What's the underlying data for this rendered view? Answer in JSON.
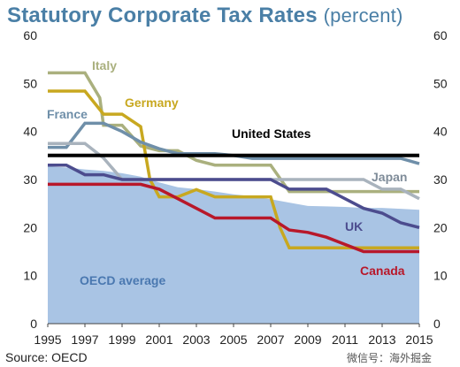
{
  "title_main": "Statutory Corporate Tax Rates",
  "title_unit": "(percent)",
  "source": "Source: OECD",
  "watermark": "微信号：海外掘金",
  "chart_data": {
    "type": "line",
    "title": "Statutory Corporate Tax Rates (percent)",
    "xlim": [
      1995,
      2015
    ],
    "ylim": [
      0,
      60
    ],
    "yticks": [
      0,
      10,
      20,
      30,
      40,
      50,
      60
    ],
    "xticks": [
      1995,
      1997,
      1999,
      2001,
      2003,
      2005,
      2007,
      2009,
      2011,
      2013,
      2015
    ],
    "grid": false,
    "series": [
      {
        "name": "OECD average",
        "style": "area",
        "color": "#a9c4e4",
        "x": [
          1995,
          1996,
          1997,
          1998,
          1999,
          2000,
          2001,
          2002,
          2003,
          2004,
          2005,
          2006,
          2007,
          2008,
          2009,
          2010,
          2011,
          2012,
          2013,
          2014,
          2015
        ],
        "y": [
          32.7,
          32.5,
          32.1,
          31.8,
          31.3,
          30.6,
          29.4,
          28.4,
          28.0,
          27.5,
          26.9,
          26.5,
          25.9,
          25.2,
          24.5,
          24.4,
          24.3,
          24.1,
          24.1,
          23.9,
          23.7
        ]
      },
      {
        "name": "Italy",
        "style": "line",
        "color": "#aab07e",
        "x": [
          1995,
          1996,
          1997,
          1997.8,
          1998,
          1999,
          2000,
          2001,
          2002,
          2003,
          2004,
          2005,
          2006,
          2007,
          2008,
          2009,
          2010,
          2011,
          2012,
          2013,
          2014,
          2015
        ],
        "y": [
          52.2,
          52.2,
          52.2,
          47,
          41.3,
          41.3,
          37,
          36,
          36,
          34,
          33,
          33,
          33,
          33,
          27.5,
          27.5,
          27.5,
          27.5,
          27.5,
          27.5,
          27.5,
          27.5
        ]
      },
      {
        "name": "Germany",
        "style": "line",
        "color": "#c8a820",
        "x": [
          1995,
          1997,
          1998,
          1999,
          2000,
          2000.5,
          2001,
          2002,
          2003,
          2004,
          2005,
          2006,
          2007,
          2007.5,
          2008,
          2009,
          2010,
          2011,
          2012,
          2013,
          2014,
          2015
        ],
        "y": [
          48.4,
          48.4,
          43.6,
          43.6,
          41,
          30,
          26.4,
          26.4,
          27.9,
          26.4,
          26.4,
          26.4,
          26.4,
          20,
          15.8,
          15.8,
          15.8,
          15.8,
          15.8,
          15.8,
          15.8,
          15.8
        ]
      },
      {
        "name": "France",
        "style": "line",
        "color": "#6f8fa9",
        "x": [
          1995,
          1996,
          1997,
          1998,
          1999,
          2000,
          2001,
          2002,
          2003,
          2004,
          2005,
          2006,
          2007,
          2008,
          2009,
          2010,
          2011,
          2012,
          2013,
          2014,
          2015
        ],
        "y": [
          36.7,
          36.7,
          41.7,
          41.7,
          40,
          37.8,
          36.4,
          35.4,
          35.4,
          35.4,
          35,
          34.4,
          34.4,
          34.4,
          34.4,
          34.4,
          34.4,
          34.4,
          34.4,
          34.4,
          33.3
        ]
      },
      {
        "name": "Japan",
        "style": "line",
        "color": "#a9b3bd",
        "x": [
          1995,
          1997,
          1998,
          1999,
          2000,
          2001,
          2002,
          2003,
          2004,
          2005,
          2006,
          2007,
          2008,
          2009,
          2010,
          2011,
          2012,
          2013,
          2014,
          2015
        ],
        "y": [
          37.5,
          37.5,
          34.5,
          30,
          30,
          30,
          30,
          30,
          30,
          30,
          30,
          30,
          30,
          30,
          30,
          30,
          30,
          28,
          28,
          26
        ]
      },
      {
        "name": "UK",
        "style": "line",
        "color": "#4c4c8e",
        "x": [
          1995,
          1996,
          1997,
          1998,
          1999,
          2000,
          2001,
          2002,
          2003,
          2004,
          2005,
          2006,
          2007,
          2008,
          2009,
          2010,
          2011,
          2012,
          2013,
          2014,
          2015
        ],
        "y": [
          33,
          33,
          31,
          31,
          30,
          30,
          30,
          30,
          30,
          30,
          30,
          30,
          30,
          28,
          28,
          28,
          26,
          24,
          23,
          21,
          20
        ]
      },
      {
        "name": "Canada",
        "style": "line",
        "color": "#b8182a",
        "x": [
          1995,
          1996,
          1997,
          1998,
          1999,
          2000,
          2001,
          2002,
          2003,
          2004,
          2005,
          2006,
          2007,
          2008,
          2009,
          2010,
          2011,
          2012,
          2013,
          2014,
          2015
        ],
        "y": [
          29,
          29,
          29,
          29,
          29,
          29,
          28,
          26,
          24,
          22,
          22,
          22,
          22,
          19.5,
          19,
          18,
          16.5,
          15,
          15,
          15,
          15
        ]
      },
      {
        "name": "United States",
        "style": "line",
        "color": "#000000",
        "x": [
          1995,
          2015
        ],
        "y": [
          35,
          35
        ]
      }
    ]
  }
}
